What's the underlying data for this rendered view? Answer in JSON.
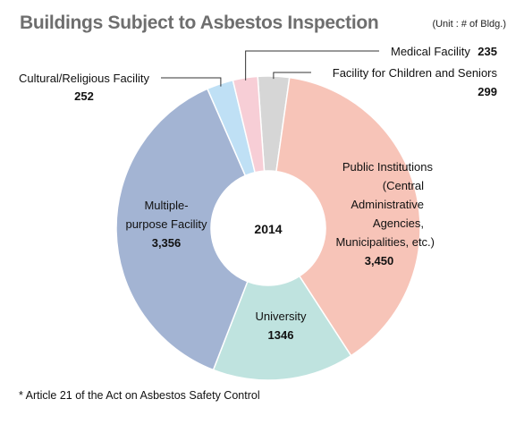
{
  "title": "Buildings Subject to Asbestos Inspection",
  "unit": "(Unit : # of Bldg.)",
  "footnote": "* Article 21 of the Act on Asbestos Safety Control",
  "chart_data": {
    "type": "pie",
    "title": "Buildings Subject to Asbestos Inspection",
    "center_label": "2014",
    "slices": [
      {
        "key": "children",
        "label": "Facility for Children and Seniors",
        "value": 299,
        "value_label": "299",
        "color": "#d6d6d6"
      },
      {
        "key": "public",
        "label": "Public Institutions (Central Administrative Agencies, Municipalities, etc.)",
        "value": 3450,
        "value_label": "3,450",
        "color": "#f7c4b8"
      },
      {
        "key": "university",
        "label": "University",
        "value": 1346,
        "value_label": "1346",
        "color": "#bfe3df"
      },
      {
        "key": "multi",
        "label": "Multiple-purpose Facility",
        "value": 3356,
        "value_label": "3,356",
        "color": "#a3b4d3"
      },
      {
        "key": "cultural",
        "label": "Cultural/Religious Facility",
        "value": 252,
        "value_label": "252",
        "color": "#bfe0f5"
      },
      {
        "key": "medical",
        "label": "Medical Facility",
        "value": 235,
        "value_label": "235",
        "color": "#f7ced6"
      }
    ],
    "label_lines": {
      "medical": [
        "Medical Facility"
      ],
      "children": [
        "Facility for Children and Seniors"
      ],
      "cultural": [
        "Cultural/Religious Facility"
      ],
      "public": [
        "Public Institutions",
        "(Central",
        "Administrative",
        "Agencies,",
        "Municipalities, etc.)"
      ],
      "university": [
        "University"
      ],
      "multi": [
        "Multiple-",
        "purpose Facility"
      ]
    }
  }
}
